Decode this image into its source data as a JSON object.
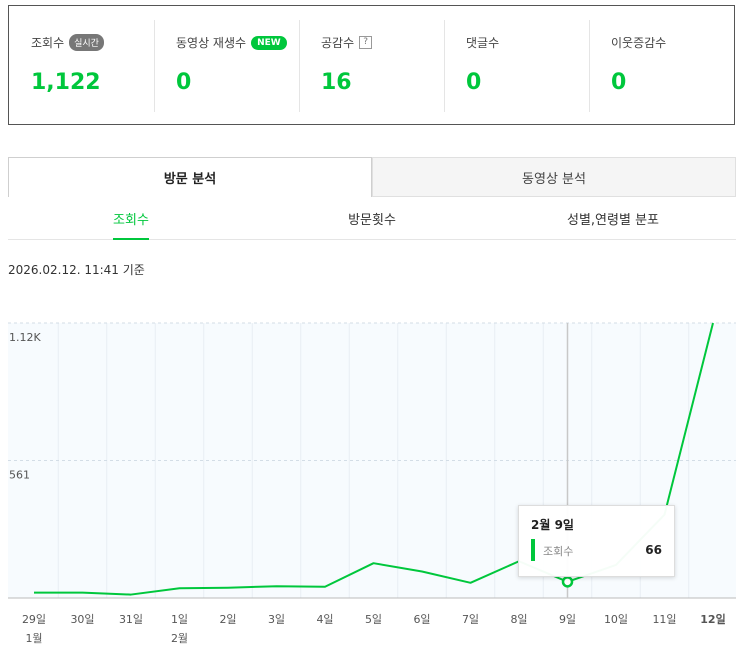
{
  "stats": [
    {
      "label": "조회수",
      "badge": "실시간",
      "badge_type": "gray",
      "value": "1,122"
    },
    {
      "label": "동영상 재생수",
      "badge": "NEW",
      "badge_type": "new",
      "value": "0"
    },
    {
      "label": "공감수",
      "badge": "?",
      "badge_type": "help",
      "value": "16"
    },
    {
      "label": "댓글수",
      "value": "0"
    },
    {
      "label": "이웃증감수",
      "value": "0"
    }
  ],
  "main_tabs": {
    "visit_analysis": "방문 분석",
    "video_analysis": "동영상 분석"
  },
  "sub_tabs": {
    "views": "조회수",
    "visit_count": "방문횟수",
    "gender_age": "성별,연령별 분포"
  },
  "timestamp": "2026.02.12. 11:41 기준",
  "colors": {
    "accent": "#00c73c",
    "plot_bg": "#f7fbfe"
  },
  "chart_data": {
    "type": "line",
    "y_ticks": [
      "1.12K",
      "561"
    ],
    "ylim": [
      0,
      1122
    ],
    "categories": [
      "29일",
      "30일",
      "31일",
      "1일",
      "2일",
      "3일",
      "4일",
      "5일",
      "6일",
      "7일",
      "8일",
      "9일",
      "10일",
      "11일",
      "12일"
    ],
    "month_labels": [
      {
        "index": 0,
        "label": "1월"
      },
      {
        "index": 3,
        "label": "2월"
      }
    ],
    "highlight_index": 14,
    "series": [
      {
        "name": "조회수",
        "values": [
          22,
          22,
          14,
          40,
          42,
          48,
          46,
          142,
          108,
          62,
          150,
          66,
          135,
          340,
          1122
        ]
      }
    ]
  },
  "tooltip": {
    "title": "2월 9일",
    "label": "조회수",
    "value": "66",
    "index": 11
  }
}
